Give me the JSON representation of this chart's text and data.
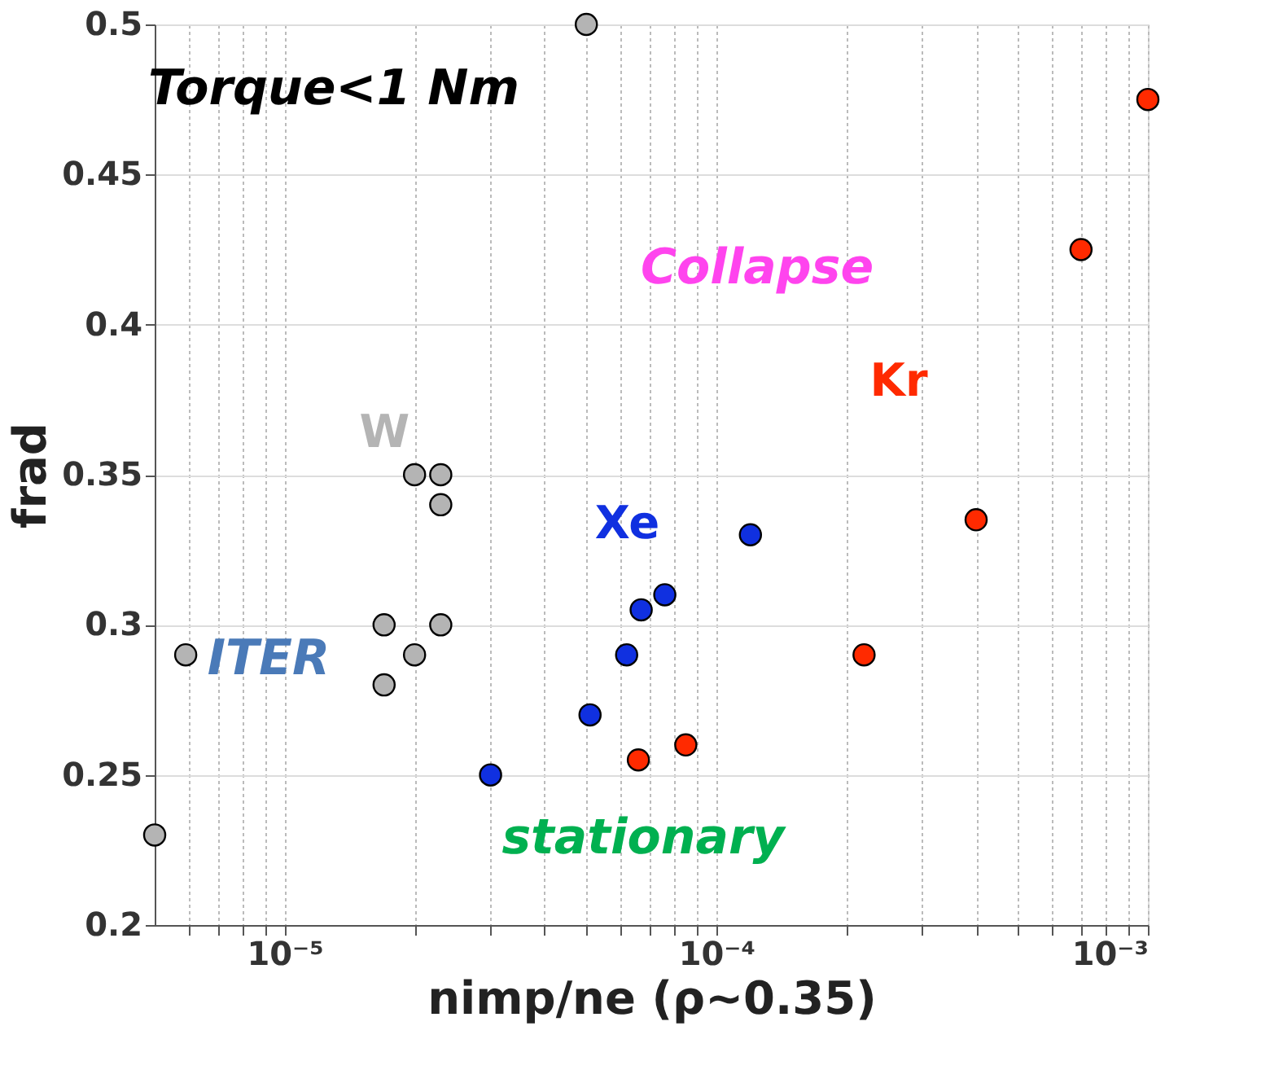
{
  "chart_data": {
    "type": "scatter",
    "xlabel": "nimp/ne (ρ~0.35)",
    "ylabel": "frad",
    "log": "x",
    "grid": true,
    "marker": "circle",
    "xlim": [
      5e-06,
      0.001
    ],
    "ylim": [
      0.2,
      0.5
    ],
    "xticks": [
      {
        "value": 6e-06,
        "label": null
      },
      {
        "value": 7e-06,
        "label": null
      },
      {
        "value": 8e-06,
        "label": null
      },
      {
        "value": 9e-06,
        "label": null
      },
      {
        "value": 1e-05,
        "label": "10⁻⁵"
      },
      {
        "value": 2e-05,
        "label": null
      },
      {
        "value": 3e-05,
        "label": null
      },
      {
        "value": 4e-05,
        "label": null
      },
      {
        "value": 5e-05,
        "label": null
      },
      {
        "value": 6e-05,
        "label": null
      },
      {
        "value": 7e-05,
        "label": null
      },
      {
        "value": 8e-05,
        "label": null
      },
      {
        "value": 9e-05,
        "label": null
      },
      {
        "value": 0.0001,
        "label": "10⁻⁴"
      },
      {
        "value": 0.0002,
        "label": null
      },
      {
        "value": 0.0003,
        "label": null
      },
      {
        "value": 0.0004,
        "label": null
      },
      {
        "value": 0.0005,
        "label": null
      },
      {
        "value": 0.0006,
        "label": null
      },
      {
        "value": 0.0007,
        "label": null
      },
      {
        "value": 0.0008,
        "label": null
      },
      {
        "value": 0.0009,
        "label": null
      },
      {
        "value": 0.001,
        "label": "10⁻³"
      }
    ],
    "yticks": [
      0.2,
      0.25,
      0.3,
      0.35,
      0.4,
      0.45,
      0.5
    ],
    "series": [
      {
        "name": "W",
        "color": "#b4b4b4",
        "x": [
          5e-06,
          5.9e-06,
          1.7e-05,
          2e-05,
          1.7e-05,
          2.3e-05,
          2e-05,
          2.3e-05,
          2.3e-05,
          5e-05
        ],
        "values": [
          0.23,
          0.29,
          0.3,
          0.29,
          0.28,
          0.3,
          0.35,
          0.35,
          0.34,
          0.5
        ]
      },
      {
        "name": "Xe",
        "color": "#1030e0",
        "x": [
          3e-05,
          5.1e-05,
          6.2e-05,
          6.7e-05,
          7.6e-05,
          0.00012
        ],
        "values": [
          0.25,
          0.27,
          0.29,
          0.305,
          0.31,
          0.33
        ]
      },
      {
        "name": "Kr",
        "color": "#ff2a00",
        "x": [
          6.6e-05,
          8.5e-05,
          0.00022,
          0.0004,
          0.0007,
          0.001
        ],
        "values": [
          0.255,
          0.26,
          0.29,
          0.335,
          0.425,
          0.475
        ]
      }
    ],
    "annotations": [
      "Torque<1 Nm",
      "Collapse",
      "stationary",
      "ITER"
    ]
  }
}
